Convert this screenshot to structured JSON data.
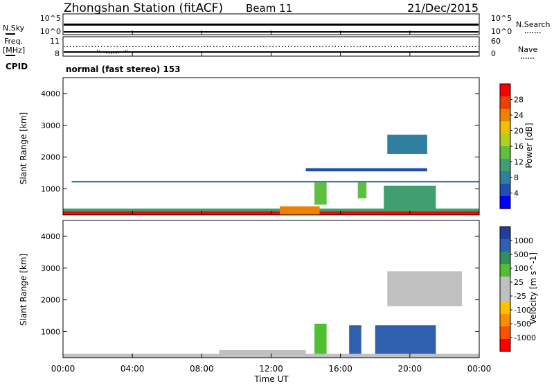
{
  "header": {
    "title": "Zhongshan Station (fitACF)",
    "beam": "Beam 11",
    "date": "21/Dec/2015"
  },
  "top_strip": {
    "nsky_label": "N.Sky",
    "nsearch_label": "N.Search",
    "nsky_ticks": [
      "10^5",
      "10^0"
    ],
    "nsearch_ticks": [
      "10^5",
      "10^0"
    ],
    "freq_label_line1": "Freq.",
    "freq_label_line2": "[MHz]",
    "freq_ticks": [
      "11",
      "8"
    ],
    "nave_label": "Nave",
    "nave_ticks": [
      "60",
      "0"
    ],
    "cpid_label": "CPID",
    "cpid_text": "normal (fast stereo) 153"
  },
  "axes": {
    "ylabel": "Slant Range [km]",
    "xlabel": "Time UT",
    "x_ticks": [
      "00:00",
      "04:00",
      "08:00",
      "12:00",
      "16:00",
      "20:00",
      "00:00"
    ],
    "x_tick_hours": [
      0,
      4,
      8,
      12,
      16,
      20,
      24
    ],
    "y_ticks": [
      "1000",
      "2000",
      "3000",
      "4000"
    ],
    "y_tick_values": [
      1000,
      2000,
      3000,
      4000
    ]
  },
  "colors": {
    "power_scale": [
      "#0000ff",
      "#1f4fb0",
      "#2f7fa0",
      "#3f9f6f",
      "#5fbf3f",
      "#b0d020",
      "#f0c000",
      "#f08000",
      "#f04000",
      "#ff0000"
    ],
    "velocity_scale": [
      "#ff0000",
      "#ff5000",
      "#ff8c00",
      "#ffc000",
      "#c0c0c0",
      "#c0c0c0",
      "#50c030",
      "#2f8f5f",
      "#2f60b0",
      "#1f3fa0"
    ]
  },
  "chart_data": [
    {
      "type": "heatmap",
      "title": "",
      "xlabel": "",
      "ylabel": "Slant Range [km]",
      "xlim": [
        0,
        24
      ],
      "ylim": [
        180,
        4500
      ],
      "colorbar_label": "Power [dB]",
      "colorbar_ticks": [
        "4",
        "8",
        "12",
        "16",
        "20",
        "24",
        "28"
      ],
      "colorbar_range": [
        0,
        30
      ],
      "patches": [
        {
          "x": [
            0,
            24
          ],
          "y": [
            180,
            290
          ],
          "value": 27
        },
        {
          "x": [
            0,
            24
          ],
          "y": [
            290,
            380
          ],
          "value": 10
        },
        {
          "x": [
            12.5,
            14.8
          ],
          "y": [
            180,
            450
          ],
          "value": 22
        },
        {
          "x": [
            14.5,
            15.2
          ],
          "y": [
            500,
            1200
          ],
          "value": 12
        },
        {
          "x": [
            17,
            17.5
          ],
          "y": [
            700,
            1200
          ],
          "value": 14
        },
        {
          "x": [
            18.5,
            21.5
          ],
          "y": [
            350,
            1100
          ],
          "value": 10
        },
        {
          "x": [
            18.7,
            21
          ],
          "y": [
            2100,
            2700
          ],
          "value": 6
        },
        {
          "x": [
            0.5,
            24
          ],
          "y": [
            1200,
            1250
          ],
          "value": 6
        },
        {
          "x": [
            14,
            21
          ],
          "y": [
            1550,
            1650
          ],
          "value": 5
        }
      ]
    },
    {
      "type": "heatmap",
      "title": "",
      "xlabel": "Time UT",
      "ylabel": "Slant Range [km]",
      "xlim": [
        0,
        24
      ],
      "ylim": [
        180,
        4500
      ],
      "colorbar_label": "Velocity [m s^-1]",
      "colorbar_ticks": [
        "-1000",
        "-500",
        "-100",
        "-25",
        "25",
        "100",
        "500",
        "1000"
      ],
      "colorbar_range": [
        -1200,
        1200
      ],
      "patches": [
        {
          "x": [
            0,
            24
          ],
          "y": [
            180,
            300
          ],
          "value": 120
        },
        {
          "x": [
            9,
            14
          ],
          "y": [
            250,
            420
          ],
          "value": -200
        },
        {
          "x": [
            14.5,
            15.2
          ],
          "y": [
            300,
            1250
          ],
          "value": 300
        },
        {
          "x": [
            16.5,
            17.2
          ],
          "y": [
            300,
            1200
          ],
          "value": 800
        },
        {
          "x": [
            18,
            21.5
          ],
          "y": [
            300,
            1200
          ],
          "value": 900
        },
        {
          "x": [
            18.7,
            23
          ],
          "y": [
            1800,
            2900
          ],
          "value": 0
        }
      ]
    }
  ]
}
